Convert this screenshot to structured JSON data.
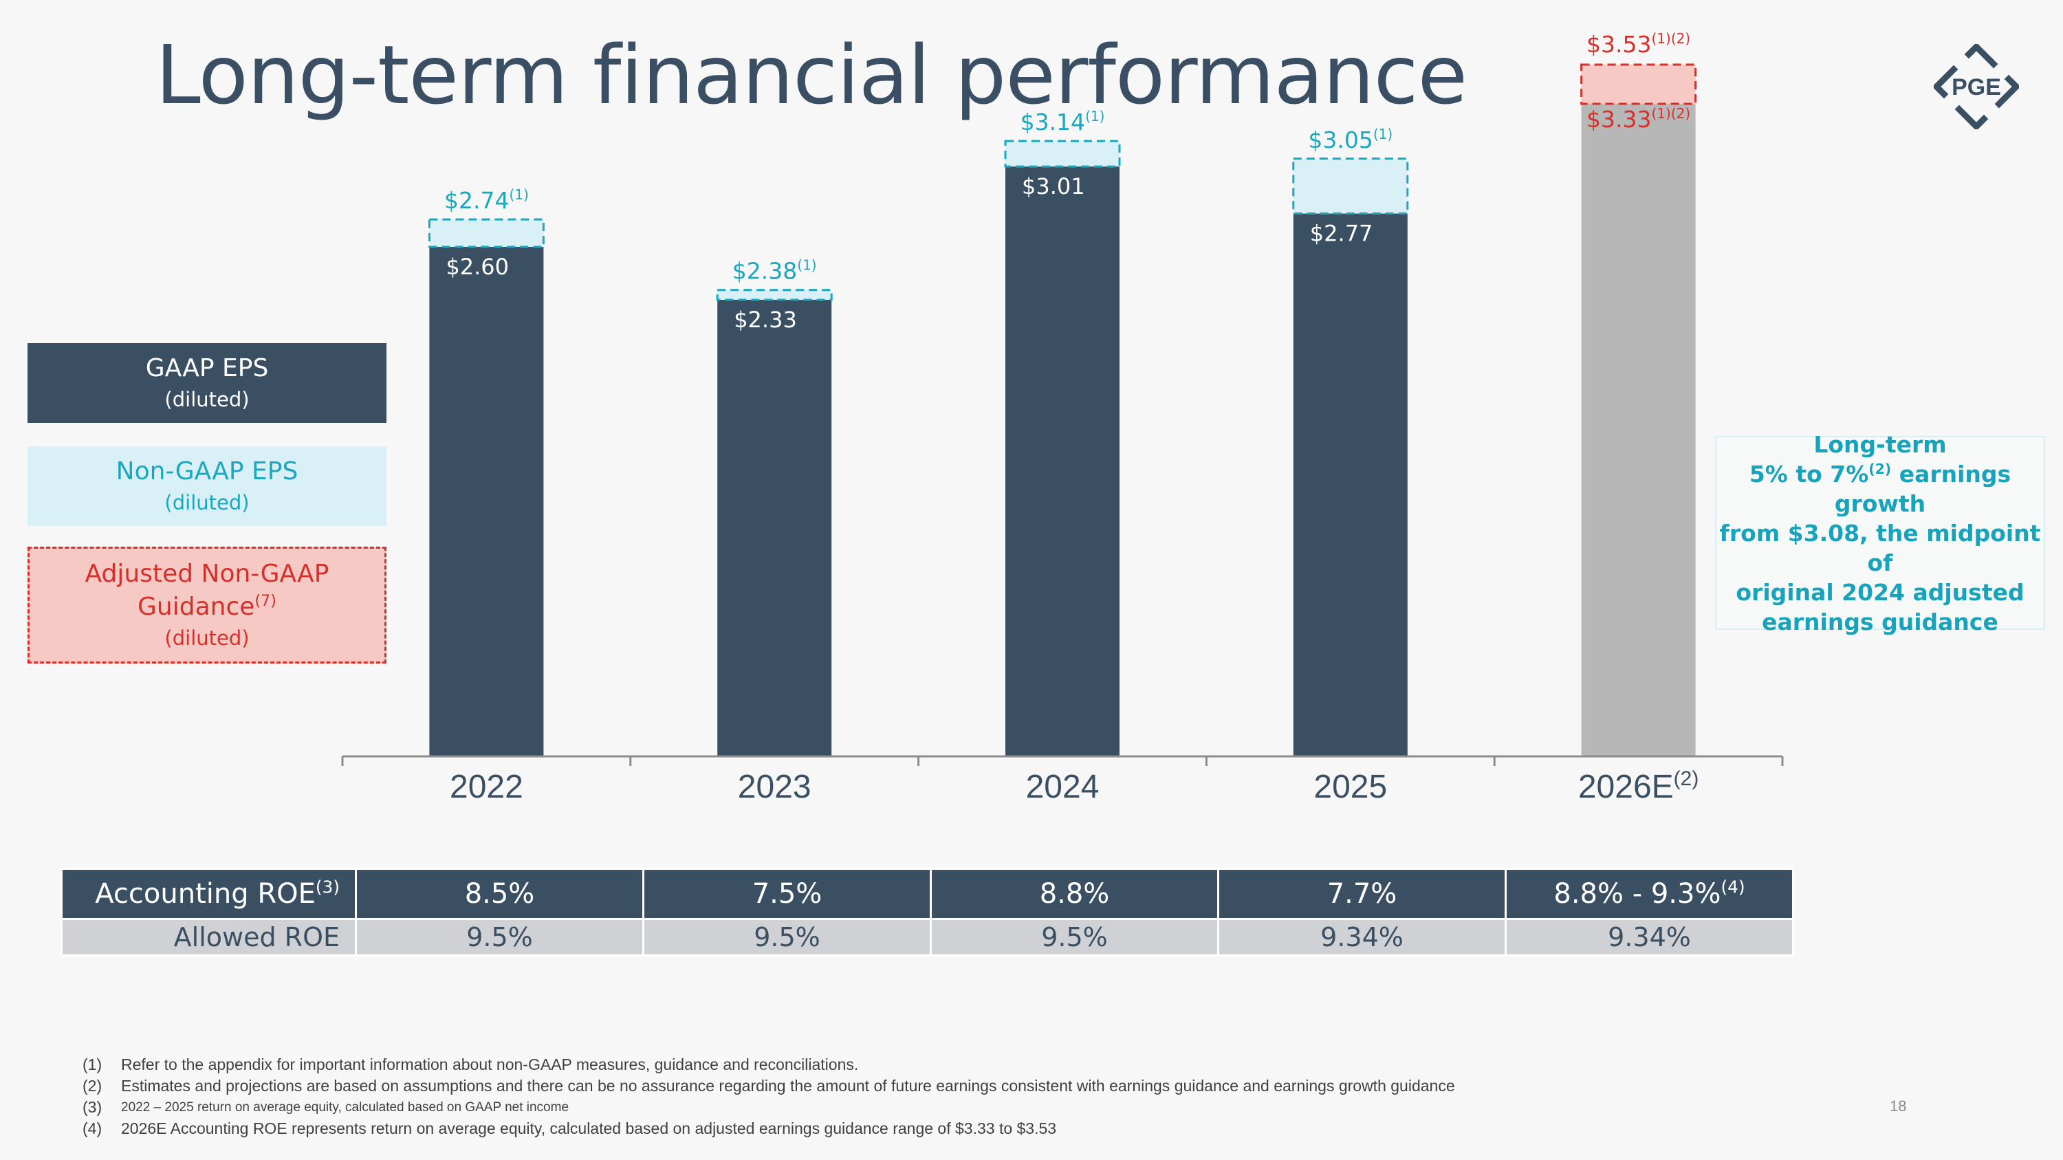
{
  "title": "Long-term financial performance",
  "logo": {
    "text": "PGE",
    "icon": "pge-logo-icon"
  },
  "legend": {
    "gaap": {
      "label": "GAAP EPS",
      "sub": "(diluted)"
    },
    "non_gaap": {
      "label": "Non-GAAP EPS",
      "sub": "(diluted)"
    },
    "adjusted": {
      "label_line1": "Adjusted Non-GAAP",
      "label_line2": "Guidance",
      "note": "(7)",
      "sub": "(diluted)"
    }
  },
  "callout": {
    "line1": "Long-term",
    "line2_pre": "5% to 7%",
    "line2_note": "(2)",
    "line2_post": " earnings growth",
    "line3": "from $3.08, the midpoint of",
    "line4": "original 2024 adjusted",
    "line5": "earnings guidance"
  },
  "chart_data": {
    "type": "bar",
    "categories": [
      "2022",
      "2023",
      "2024",
      "2025",
      "2026E"
    ],
    "category_notes": [
      "",
      "",
      "",
      "",
      "(2)"
    ],
    "series": [
      {
        "name": "GAAP EPS",
        "values": [
          2.6,
          2.33,
          3.01,
          2.77,
          null
        ],
        "labels": [
          "$2.60",
          "$2.33",
          "$3.01",
          "$2.77",
          ""
        ]
      },
      {
        "name": "Non-GAAP EPS",
        "values": [
          2.74,
          2.38,
          3.14,
          3.05,
          null
        ],
        "labels": [
          "$2.74",
          "$2.38",
          "$3.14",
          "$3.05",
          ""
        ],
        "label_note": "(1)"
      },
      {
        "name": "Adjusted Non-GAAP Guidance",
        "low": 3.33,
        "high": 3.53,
        "labels": [
          "$3.33",
          "$3.53"
        ],
        "label_note": "(1)(2)"
      }
    ],
    "ylim": [
      0,
      3.6
    ],
    "colors": {
      "gaap": "#3b4f63",
      "non_gaap_fill": "#d9f1f6",
      "non_gaap_stroke": "#1aa7c0",
      "guidance_base": "#b7b7b7",
      "guidance_fill": "#f7c9c4",
      "guidance_stroke": "#d6302a",
      "axis": "#8c8c8c"
    }
  },
  "roe_table": {
    "rows": [
      {
        "label": "Accounting ROE",
        "note": "(3)",
        "values": [
          "8.5%",
          "7.5%",
          "8.8%",
          "7.7%",
          "8.8% - 9.3%"
        ],
        "last_note": "(4)"
      },
      {
        "label": "Allowed ROE",
        "values": [
          "9.5%",
          "9.5%",
          "9.5%",
          "9.34%",
          "9.34%"
        ]
      }
    ]
  },
  "footnotes": [
    {
      "num": "(1)",
      "text": "Refer to the appendix for important information about non-GAAP measures, guidance and reconciliations."
    },
    {
      "num": "(2)",
      "text": "Estimates and projections are based on assumptions and there can be no assurance regarding the amount of future earnings consistent with earnings guidance and earnings growth guidance"
    },
    {
      "num": "(3)",
      "text": "2022 – 2025 return on average equity, calculated based on GAAP net income"
    },
    {
      "num": "(4)",
      "text": "2026E Accounting ROE represents return on average equity, calculated based on adjusted earnings guidance range of $3.33 to $3.53"
    }
  ],
  "page_number": "18"
}
